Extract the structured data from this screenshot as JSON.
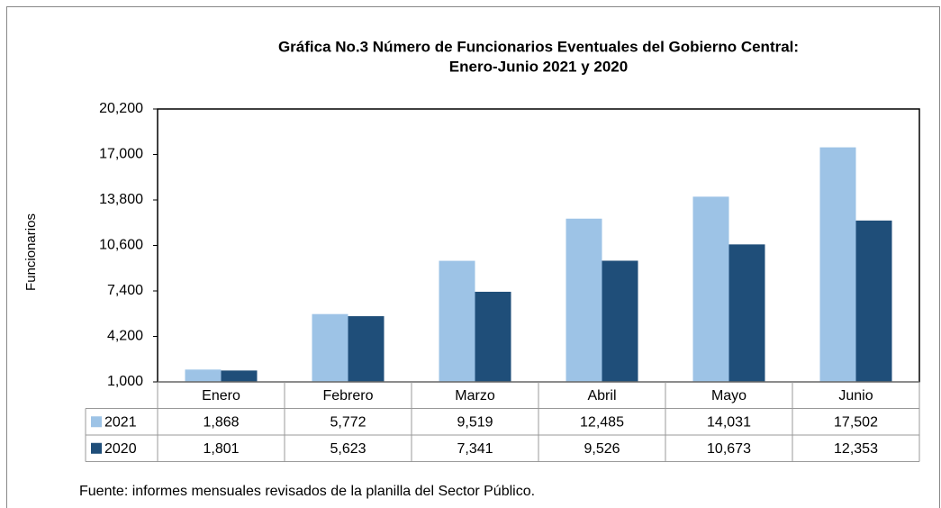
{
  "chart_data": {
    "type": "bar",
    "title": [
      "Gráfica No.3 Número de Funcionarios Eventuales del Gobierno Central:",
      "Enero-Junio 2021 y 2020"
    ],
    "y_label": "Funcionarios",
    "source": "Fuente: informes mensuales revisados de la planilla del Sector Público.",
    "categories": [
      "Enero",
      "Febrero",
      "Marzo",
      "Abril",
      "Mayo",
      "Junio"
    ],
    "series": [
      {
        "name": "2021",
        "color": "#9dc3e6",
        "values": [
          1868,
          5772,
          9519,
          12485,
          14031,
          17502
        ],
        "value_labels": [
          "1,868",
          "5,772",
          "9,519",
          "12,485",
          "14,031",
          "17,502"
        ]
      },
      {
        "name": "2020",
        "color": "#1f4e79",
        "values": [
          1801,
          5623,
          7341,
          9526,
          10673,
          12353
        ],
        "value_labels": [
          "1,801",
          "5,623",
          "7,341",
          "9,526",
          "10,673",
          "12,353"
        ]
      }
    ],
    "ylim": [
      1000,
      20200
    ],
    "yticks": [
      {
        "value": 1000,
        "label": "1,000"
      },
      {
        "value": 4200,
        "label": "4,200"
      },
      {
        "value": 7400,
        "label": "7,400"
      },
      {
        "value": 10600,
        "label": "10,600"
      },
      {
        "value": 13800,
        "label": "13,800"
      },
      {
        "value": 17000,
        "label": "17,000"
      },
      {
        "value": 20200,
        "label": "20,200"
      }
    ],
    "grid": false
  }
}
